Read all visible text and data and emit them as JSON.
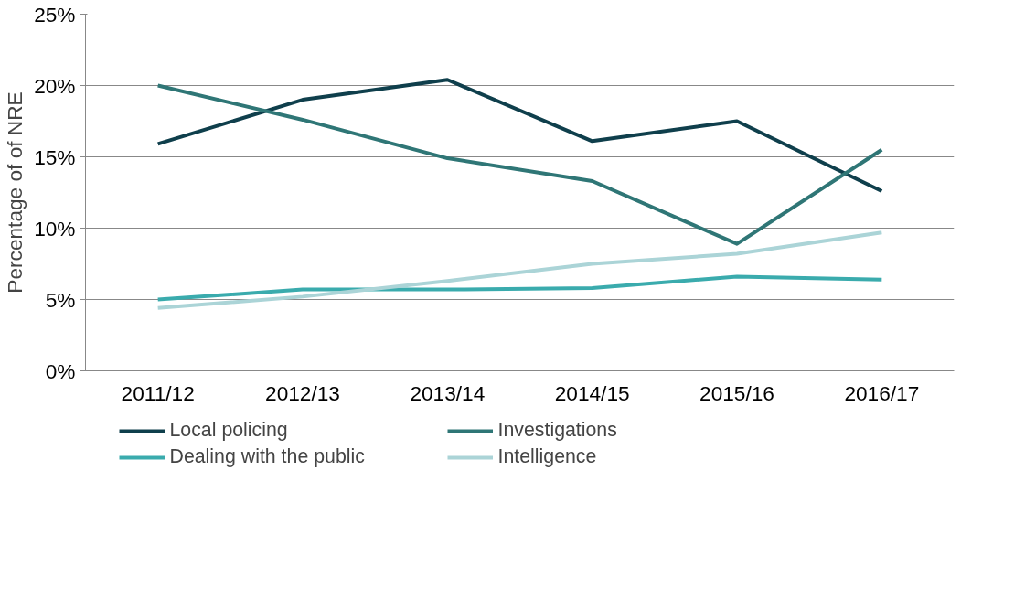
{
  "chart_data": {
    "type": "line",
    "ylabel": "Percentage of of NRE",
    "categories": [
      "2011/12",
      "2012/13",
      "2013/14",
      "2014/15",
      "2015/16",
      "2016/17"
    ],
    "series": [
      {
        "name": "Local policing",
        "color": "#0f3f4c",
        "values": [
          15.9,
          19.0,
          20.4,
          16.1,
          17.5,
          12.6
        ]
      },
      {
        "name": "Investigations",
        "color": "#2f7676",
        "values": [
          20.0,
          17.6,
          14.9,
          13.3,
          8.9,
          15.5
        ]
      },
      {
        "name": "Dealing with the public",
        "color": "#3aabad",
        "values": [
          5.0,
          5.7,
          5.7,
          5.8,
          6.6,
          6.4
        ]
      },
      {
        "name": "Intelligence",
        "color": "#abd4d7",
        "values": [
          4.4,
          5.2,
          6.3,
          7.5,
          8.2,
          9.7
        ]
      }
    ],
    "ylim": [
      0,
      25
    ],
    "yticks": [
      {
        "value": 0,
        "label": "0%"
      },
      {
        "value": 5,
        "label": "5%"
      },
      {
        "value": 10,
        "label": "10%"
      },
      {
        "value": 15,
        "label": "15%"
      },
      {
        "value": 20,
        "label": "20%"
      },
      {
        "value": 25,
        "label": "25%"
      }
    ],
    "grid": "y",
    "legend": "bottom",
    "marker": "none",
    "line_style": "solid"
  }
}
